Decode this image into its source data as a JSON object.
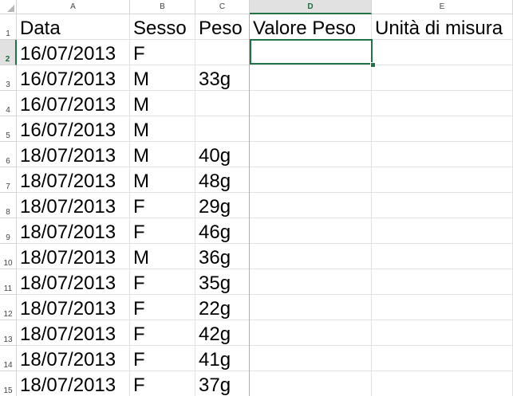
{
  "columns": [
    "A",
    "B",
    "C",
    "D",
    "E"
  ],
  "active_column": "D",
  "active_row": 2,
  "header_row": [
    "Data",
    "Sesso",
    "Peso",
    "Valore Peso",
    "Unità di misura"
  ],
  "rows": [
    {
      "num": "2",
      "data": "16/07/2013",
      "sesso": "F",
      "peso": ""
    },
    {
      "num": "3",
      "data": "16/07/2013",
      "sesso": "M",
      "peso": "33g"
    },
    {
      "num": "4",
      "data": "16/07/2013",
      "sesso": "M",
      "peso": ""
    },
    {
      "num": "5",
      "data": "16/07/2013",
      "sesso": "M",
      "peso": ""
    },
    {
      "num": "6",
      "data": "18/07/2013",
      "sesso": "M",
      "peso": "40g"
    },
    {
      "num": "7",
      "data": "18/07/2013",
      "sesso": "M",
      "peso": "48g"
    },
    {
      "num": "8",
      "data": "18/07/2013",
      "sesso": "F",
      "peso": "29g"
    },
    {
      "num": "9",
      "data": "18/07/2013",
      "sesso": "F",
      "peso": "46g"
    },
    {
      "num": "10",
      "data": "18/07/2013",
      "sesso": "M",
      "peso": "36g"
    },
    {
      "num": "11",
      "data": "18/07/2013",
      "sesso": "F",
      "peso": "35g"
    },
    {
      "num": "12",
      "data": "18/07/2013",
      "sesso": "F",
      "peso": "22g"
    },
    {
      "num": "13",
      "data": "18/07/2013",
      "sesso": "F",
      "peso": "42g"
    },
    {
      "num": "14",
      "data": "18/07/2013",
      "sesso": "F",
      "peso": "41g"
    },
    {
      "num": "15",
      "data": "18/07/2013",
      "sesso": "F",
      "peso": "37g"
    }
  ],
  "colors": {
    "selection": "#217346",
    "gridline": "#e1e1e1",
    "header_bg": "#e1e1e1"
  }
}
